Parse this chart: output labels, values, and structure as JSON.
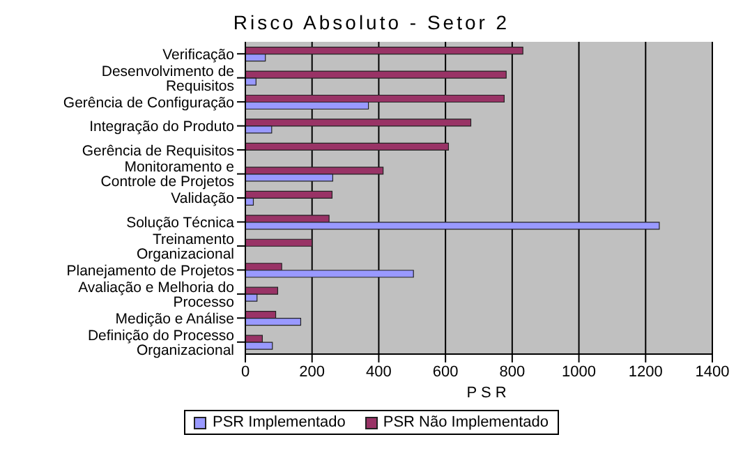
{
  "chart_data": {
    "type": "bar",
    "orientation": "horizontal",
    "title": "Risco Absoluto - Setor 2",
    "xlabel": "PSR",
    "categories": [
      "Verificação",
      "Desenvolvimento de Requisitos",
      "Gerência de Configuração",
      "Integração do Produto",
      "Gerência de Requisitos",
      "Monitoramento e Controle de Projetos",
      "Validação",
      "Solução Técnica",
      "Treinamento Organizacional",
      "Planejamento de Projetos",
      "Avaliação e Melhoria do Processo",
      "Medição e Análise",
      "Definição do Processo Organizacional"
    ],
    "series": [
      {
        "name": "PSR Implementado",
        "color": "#9999ff",
        "values": [
          60,
          32,
          369,
          79,
          0,
          262,
          24,
          1241,
          0,
          504,
          35,
          166,
          81
        ]
      },
      {
        "name": "PSR Não Implementado",
        "color": "#993366",
        "values": [
          832,
          782,
          776,
          676,
          609,
          413,
          260,
          251,
          200,
          109,
          97,
          91,
          51
        ]
      }
    ],
    "xlim": [
      0,
      1400
    ],
    "xticks": [
      0,
      200,
      400,
      600,
      800,
      1000,
      1200,
      1400
    ],
    "grid": "x",
    "legend": "bottom"
  }
}
